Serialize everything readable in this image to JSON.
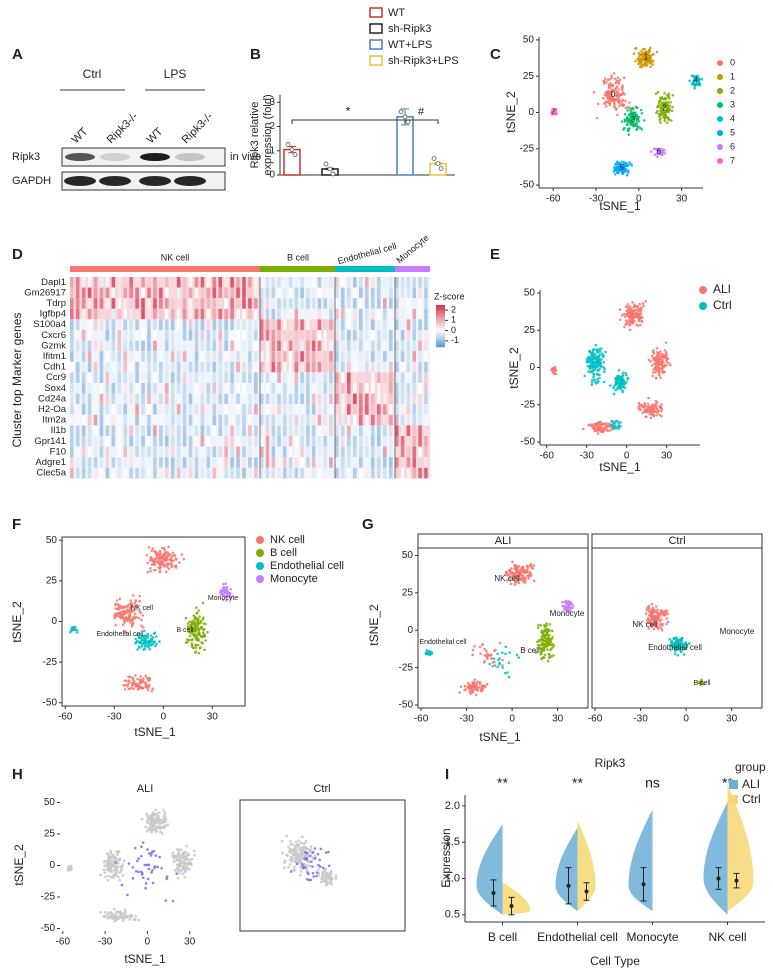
{
  "panel_labels": [
    "A",
    "B",
    "C",
    "D",
    "E",
    "F",
    "G",
    "H",
    "I"
  ],
  "A": {
    "groups": [
      "Ctrl",
      "LPS"
    ],
    "lanes": [
      "WT",
      "Ripk3-/-",
      "WT",
      "Ripk3-/-"
    ],
    "rows": [
      "Ripk3",
      "GAPDH"
    ],
    "note": "in vivo"
  },
  "B": {
    "type": "bar",
    "ylabel": [
      "Ripk3 relative",
      "expression (fold)"
    ],
    "categories": [
      "WT",
      "sh-Ripk3",
      "WT+LPS",
      "sh-Ripk3+LPS"
    ],
    "colors": [
      "#c0392b",
      "#222222",
      "#4a7fc1",
      "#e8c04a"
    ],
    "values": [
      1.05,
      0.25,
      2.4,
      0.47
    ],
    "errors": [
      0.13,
      0.03,
      0.33,
      0.04
    ],
    "ylim": [
      0,
      3.3
    ],
    "yticks": [
      0,
      1,
      2,
      3
    ],
    "annotations": [
      "*",
      "#"
    ]
  },
  "C": {
    "type": "scatter",
    "xlabel": "tSNE_1",
    "ylabel": "tSNE_2",
    "xlim": [
      -70,
      45
    ],
    "ylim": [
      -52,
      52
    ],
    "xticks": [
      -60,
      -30,
      0,
      30
    ],
    "yticks": [
      -50,
      -25,
      0,
      25,
      50
    ],
    "clusters": [
      "0",
      "1",
      "2",
      "3",
      "4",
      "5",
      "6",
      "7"
    ],
    "colors": [
      "#F8766D",
      "#CD9600",
      "#7CAE00",
      "#00BE67",
      "#00BFC4",
      "#00A9FF",
      "#C77CFF",
      "#FF61CC"
    ]
  },
  "D": {
    "type": "heatmap",
    "groups": [
      "NK cell",
      "B cell",
      "Endothelial cell",
      "Monocyte"
    ],
    "group_colors": [
      "#F8766D",
      "#7CAE00",
      "#00BFC4",
      "#C77CFF"
    ],
    "genes": [
      "Dapl1",
      "Gm26917",
      "Tdrp",
      "Igfbp4",
      "S100a4",
      "Cxcr6",
      "Gzmk",
      "Ifitm1",
      "Cdh1",
      "Ccr9",
      "Sox4",
      "Cd24a",
      "H2-Oa",
      "Itm2a",
      "Il1b",
      "Gpr141",
      "F10",
      "Adgre1",
      "Clec5a"
    ],
    "ylabel": "Cluster top Marker genes",
    "legend_title": "Z-score",
    "colorbar_lim": [
      -1.6,
      2.5
    ],
    "colorbar_ticks": [
      2,
      1,
      0,
      -1
    ]
  },
  "E": {
    "type": "scatter",
    "xlabel": "tSNE_1",
    "ylabel": "tSNE_2",
    "xlim": [
      -65,
      55
    ],
    "ylim": [
      -52,
      52
    ],
    "xticks": [
      -60,
      -30,
      0,
      30
    ],
    "yticks": [
      -50,
      -25,
      0,
      25,
      50
    ],
    "series": [
      {
        "name": "ALI",
        "color": "#F8766D"
      },
      {
        "name": "Ctrl",
        "color": "#00BFC4"
      }
    ]
  },
  "F": {
    "type": "scatter",
    "xlabel": "tSNE_1",
    "ylabel": "tSNE_2",
    "xlim": [
      -62,
      50
    ],
    "ylim": [
      -52,
      52
    ],
    "xticks": [
      -60,
      -30,
      0,
      30
    ],
    "yticks": [
      -50,
      -25,
      0,
      25,
      50
    ],
    "series": [
      {
        "name": "NK cell",
        "color": "#F8766D"
      },
      {
        "name": "B cell",
        "color": "#7CAE00"
      },
      {
        "name": "Endothelial cell",
        "color": "#00BFC4"
      },
      {
        "name": "Monocyte",
        "color": "#C77CFF"
      }
    ]
  },
  "G": {
    "type": "scatter",
    "xlabel": "tSNE_1",
    "ylabel": "tSNE_2",
    "facets": [
      "ALI",
      "Ctrl"
    ],
    "xlim": [
      -62,
      50
    ],
    "ylim": [
      -52,
      55
    ],
    "xticks": [
      -60,
      -30,
      0,
      30
    ],
    "yticks": [
      -50,
      -25,
      0,
      25,
      50
    ],
    "series": [
      {
        "name": "NK cell",
        "color": "#F8766D"
      },
      {
        "name": "B cell",
        "color": "#7CAE00"
      },
      {
        "name": "Endothelial cell",
        "color": "#00BFC4"
      },
      {
        "name": "Monocyte",
        "color": "#C77CFF"
      }
    ]
  },
  "H": {
    "type": "scatter",
    "xlabel": "tSNE_1",
    "ylabel": "tSNE_2",
    "facets": [
      "ALI",
      "Ctrl"
    ],
    "xlim": [
      -62,
      55
    ],
    "ylim": [
      -52,
      52
    ],
    "xticks": [
      -60,
      -30,
      0,
      30
    ],
    "yticks": [
      -50,
      -25,
      0,
      25,
      50
    ]
  },
  "I": {
    "type": "violin",
    "title": "Ripk3",
    "ylabel": "Expression",
    "xlabel": "Cell Type",
    "legend_title": "group",
    "categories": [
      "B cell",
      "Endothelial cell",
      "Monocyte",
      "NK cell"
    ],
    "significance": [
      "**",
      "**",
      "ns",
      "**"
    ],
    "series": [
      {
        "name": "ALI",
        "color": "#6baed6",
        "values": [
          0.8,
          0.9,
          0.92,
          1.0
        ],
        "errors": [
          0.18,
          0.25,
          0.23,
          0.15
        ]
      },
      {
        "name": "Ctrl",
        "color": "#f7d774",
        "values": [
          0.62,
          0.82,
          null,
          0.97
        ],
        "errors": [
          0.12,
          0.12,
          null,
          0.1
        ]
      }
    ],
    "ylim": [
      0.4,
      2.15
    ],
    "yticks": [
      0.5,
      {
        "value": 1.0,
        "label": "1.0"
      },
      1.5,
      {
        "value": 2.0,
        "label": "2.0"
      }
    ]
  }
}
